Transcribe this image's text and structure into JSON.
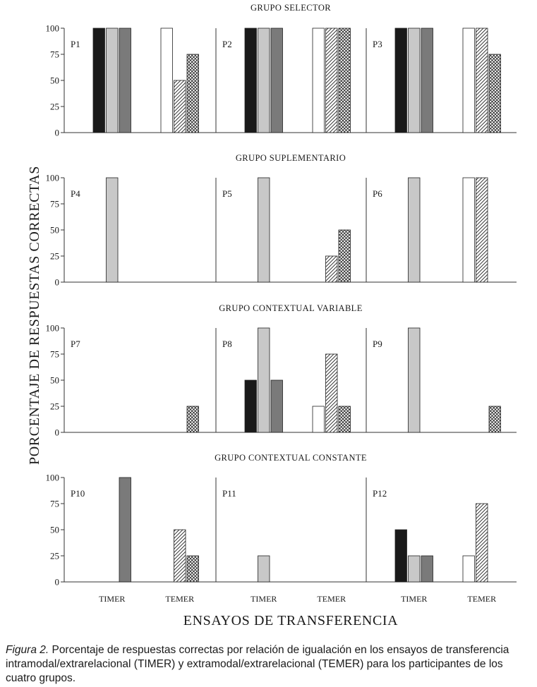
{
  "chart_data": {
    "type": "bar",
    "ylabel": "PORCENTAJE DE RESPUESTAS CORRECTAS",
    "xlabel": "ENSAYOS DE TRANSFERENCIA",
    "ylim": [
      0,
      100
    ],
    "yticks": [
      "0",
      "25",
      "50",
      "75",
      "100"
    ],
    "categories": [
      "TIMER",
      "TEMER"
    ],
    "relations_per_category": 3,
    "colors": {
      "timer": [
        "#1a1a1a",
        "#c8c8c8",
        "#7a7a7a"
      ],
      "temer_fill": "#ffffff",
      "stroke": "#222222",
      "axis": "#333333"
    },
    "groups": [
      {
        "title": "GRUPO SELECTOR",
        "participants": [
          {
            "name": "P1",
            "timer": [
              100,
              100,
              100
            ],
            "temer": [
              100,
              50,
              75
            ]
          },
          {
            "name": "P2",
            "timer": [
              100,
              100,
              100
            ],
            "temer": [
              100,
              100,
              100
            ]
          },
          {
            "name": "P3",
            "timer": [
              100,
              100,
              100
            ],
            "temer": [
              100,
              100,
              75
            ]
          }
        ]
      },
      {
        "title": "GRUPO SUPLEMENTARIO",
        "participants": [
          {
            "name": "P4",
            "timer": [
              0,
              100,
              0
            ],
            "temer": [
              0,
              0,
              0
            ]
          },
          {
            "name": "P5",
            "timer": [
              0,
              100,
              0
            ],
            "temer": [
              0,
              25,
              50
            ]
          },
          {
            "name": "P6",
            "timer": [
              0,
              100,
              0
            ],
            "temer": [
              100,
              100,
              0
            ]
          }
        ]
      },
      {
        "title": "GRUPO CONTEXTUAL VARIABLE",
        "participants": [
          {
            "name": "P7",
            "timer": [
              0,
              0,
              0
            ],
            "temer": [
              0,
              0,
              25
            ]
          },
          {
            "name": "P8",
            "timer": [
              50,
              100,
              50
            ],
            "temer": [
              25,
              75,
              25
            ]
          },
          {
            "name": "P9",
            "timer": [
              0,
              100,
              0
            ],
            "temer": [
              0,
              0,
              25
            ]
          }
        ]
      },
      {
        "title": "GRUPO CONTEXTUAL CONSTANTE",
        "participants": [
          {
            "name": "P10",
            "timer": [
              0,
              0,
              100
            ],
            "temer": [
              0,
              50,
              25
            ]
          },
          {
            "name": "P11",
            "timer": [
              0,
              25,
              0
            ],
            "temer": [
              0,
              0,
              0
            ]
          },
          {
            "name": "P12",
            "timer": [
              50,
              25,
              25
            ],
            "temer": [
              25,
              75,
              0
            ]
          }
        ]
      }
    ]
  },
  "caption": {
    "figure_label": "Figura 2.",
    "text": " Porcentaje de respuestas correctas por relación de igualación en los ensayos de transferencia intramodal/extrarelacional (TIMER) y extramodal/extrarelacional (TEMER) para los participantes de los cuatro grupos."
  }
}
